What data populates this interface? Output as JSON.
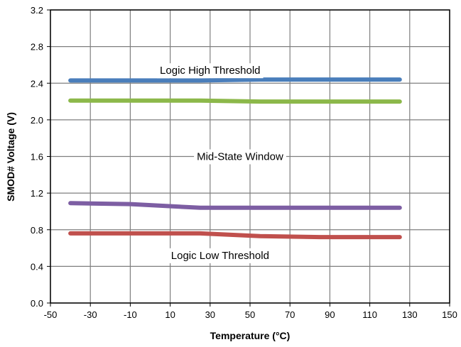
{
  "chart_data": {
    "type": "line",
    "xlabel": "Temperature (°C)",
    "ylabel": "SMOD# Voltage (V)",
    "xlim": [
      -50,
      150
    ],
    "ylim": [
      0.0,
      3.2
    ],
    "x_ticks": [
      "-50",
      "-30",
      "-10",
      "10",
      "30",
      "50",
      "70",
      "90",
      "110",
      "130",
      "150"
    ],
    "y_ticks": [
      "0.0",
      "0.4",
      "0.8",
      "1.2",
      "1.6",
      "2.0",
      "2.4",
      "2.8",
      "3.2"
    ],
    "x_tick_values": [
      -50,
      -30,
      -10,
      10,
      30,
      50,
      70,
      90,
      110,
      130,
      150
    ],
    "y_tick_values": [
      0.0,
      0.4,
      0.8,
      1.2,
      1.6,
      2.0,
      2.4,
      2.8,
      3.2
    ],
    "grid": true,
    "legend": "none",
    "series": [
      {
        "color": "#4a7ebb",
        "x": [
          -40,
          25,
          55,
          85,
          125
        ],
        "y": [
          2.43,
          2.43,
          2.44,
          2.44,
          2.44
        ]
      },
      {
        "color": "#8cb84a",
        "x": [
          -40,
          25,
          55,
          85,
          125
        ],
        "y": [
          2.21,
          2.21,
          2.2,
          2.2,
          2.2
        ]
      },
      {
        "color": "#7d5ea3",
        "x": [
          -40,
          -10,
          25,
          55,
          85,
          125
        ],
        "y": [
          1.09,
          1.08,
          1.04,
          1.04,
          1.04,
          1.04
        ]
      },
      {
        "color": "#c0504d",
        "x": [
          -40,
          25,
          55,
          85,
          125
        ],
        "y": [
          0.76,
          0.76,
          0.73,
          0.72,
          0.72
        ]
      }
    ],
    "annotations": [
      {
        "text": "Logic High Threshold",
        "x": 30,
        "y": 2.54
      },
      {
        "text": "Mid-State Window",
        "x": 45,
        "y": 1.6
      },
      {
        "text": "Logic Low Threshold",
        "x": 35,
        "y": 0.52
      }
    ]
  }
}
